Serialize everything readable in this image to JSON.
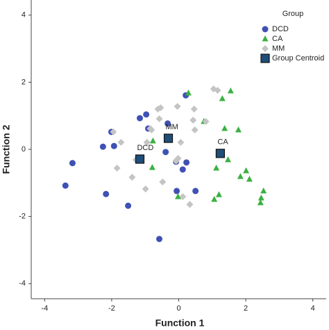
{
  "chart_data": {
    "type": "scatter",
    "xlabel": "Function 1",
    "ylabel": "Function 2",
    "xlim": [
      -4.4,
      4.4
    ],
    "ylim": [
      -4.45,
      4.45
    ],
    "xticks": [
      -4,
      -2,
      0,
      2,
      4
    ],
    "yticks": [
      -4,
      -2,
      0,
      2,
      4
    ],
    "legend_title": "Group",
    "legend": "top-right",
    "series": [
      {
        "name": "DCD",
        "color": "#3f51b5",
        "marker": "circle",
        "x": [
          0.21,
          -0.97,
          -1.16,
          -0.33,
          -2.01,
          -0.91,
          -2.26,
          -1.93,
          -0.39,
          -3.17,
          -0.08,
          0.23,
          0.12,
          -3.38,
          -2.17,
          -0.06,
          0.5,
          -1.51,
          -0.58
        ],
        "y": [
          1.61,
          1.04,
          0.93,
          0.77,
          0.52,
          0.62,
          0.08,
          0.1,
          -0.08,
          -0.41,
          -0.37,
          -0.39,
          -0.6,
          -1.08,
          -1.33,
          -1.24,
          -1.24,
          -1.68,
          -2.67
        ]
      },
      {
        "name": "CA",
        "color": "#3cb043",
        "marker": "triangle",
        "x": [
          0.29,
          1.55,
          1.3,
          0.75,
          1.37,
          1.78,
          -0.77,
          1.12,
          1.47,
          2.01,
          1.84,
          2.11,
          2.53,
          2.46,
          2.44,
          1.2,
          1.06,
          -0.79,
          -0.02
        ],
        "y": [
          1.68,
          1.74,
          1.51,
          0.83,
          0.62,
          0.58,
          0.25,
          -0.56,
          -0.31,
          -0.64,
          -0.81,
          -0.89,
          -1.24,
          -1.45,
          -1.59,
          -1.35,
          -1.49,
          -0.54,
          -1.41
        ]
      },
      {
        "name": "MM",
        "color": "#c4c4c4",
        "marker": "diamond",
        "x": [
          1.04,
          1.16,
          -0.62,
          -0.54,
          -0.04,
          0.46,
          -0.85,
          -0.81,
          -0.58,
          0.43,
          0.81,
          0.48,
          -1.95,
          -1.72,
          -0.95,
          0.06,
          -0.08,
          -0.02,
          -1.84,
          -1.39,
          -1.28,
          -0.99,
          -0.48,
          0.33,
          0.12
        ],
        "y": [
          1.8,
          1.76,
          1.2,
          1.24,
          1.28,
          1.2,
          0.62,
          0.58,
          0.91,
          0.87,
          0.83,
          0.58,
          0.52,
          0.21,
          0.21,
          0.21,
          -0.35,
          -0.27,
          -0.56,
          -0.83,
          -0.31,
          -1.18,
          -0.97,
          -1.64,
          -1.41
        ]
      },
      {
        "name": "Group Centroid",
        "color": "#1f4e79",
        "marker": "square",
        "x": [
          -1.16,
          -0.31,
          1.24
        ],
        "y": [
          -0.29,
          0.33,
          -0.12
        ],
        "labels": [
          "DCD",
          "MM",
          "CA"
        ]
      }
    ]
  }
}
